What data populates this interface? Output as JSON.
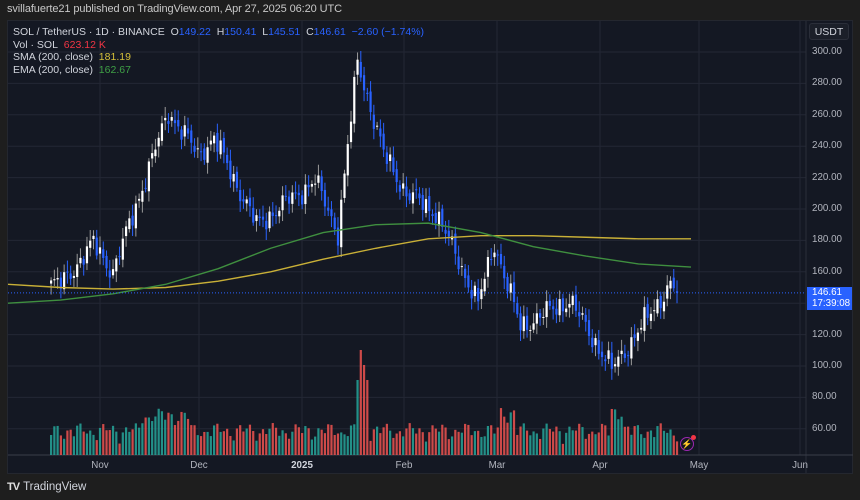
{
  "header": {
    "published_text": "svillafuerte21 published on TradingView.com, Apr 27, 2025 06:20 UTC"
  },
  "legend": {
    "symbol": "SOL / TetherUS · 1D · BINANCE",
    "open_label": "O",
    "open": "149.22",
    "high_label": "H",
    "high": "150.41",
    "low_label": "L",
    "low": "145.51",
    "close_label": "C",
    "close": "146.61",
    "change": "−2.60 (−1.74%)",
    "volume_label": "Vol · SOL",
    "volume": "623.12 K",
    "sma_label": "SMA (200, close)",
    "sma": "181.19",
    "ema_label": "EMA (200, close)",
    "ema": "162.67"
  },
  "price_axis": {
    "currency": "USDT",
    "ticks": [
      "300.00",
      "280.00",
      "260.00",
      "240.00",
      "220.00",
      "200.00",
      "180.00",
      "160.00",
      "120.00",
      "100.00",
      "80.00",
      "60.00"
    ],
    "last_price": "146.61",
    "countdown": "17:39:08"
  },
  "time_axis": {
    "labels": [
      {
        "text": "Nov",
        "bold": false
      },
      {
        "text": "Dec",
        "bold": false
      },
      {
        "text": "2025",
        "bold": true
      },
      {
        "text": "Feb",
        "bold": false
      },
      {
        "text": "Mar",
        "bold": false
      },
      {
        "text": "Apr",
        "bold": false
      },
      {
        "text": "May",
        "bold": false
      },
      {
        "text": "Jun",
        "bold": false
      }
    ]
  },
  "footer": {
    "logo_mark": "TV",
    "brand": "TradingView"
  },
  "colors": {
    "up_candle": "#ffffff",
    "down_candle": "#2962ff",
    "volume_up": "#26a69a",
    "volume_down": "#ef5350",
    "sma": "#c9b037",
    "ema": "#3f8f3f",
    "background": "#141823",
    "grid": "#232734"
  },
  "chart_data": {
    "type": "candlestick",
    "title": "SOL / TetherUS · 1D · BINANCE",
    "xlabel": "",
    "ylabel": "USDT",
    "ylim": [
      45,
      310
    ],
    "x_ticks": [
      "Nov",
      "Dec",
      "2025",
      "Feb",
      "Mar",
      "Apr",
      "May",
      "Jun"
    ],
    "y_ticks": [
      60,
      80,
      100,
      120,
      140,
      160,
      180,
      200,
      220,
      240,
      260,
      280,
      300
    ],
    "grid": true,
    "legend_position": "top-left",
    "last": {
      "open": 149.22,
      "high": 150.41,
      "low": 145.51,
      "close": 146.61,
      "change": -2.6,
      "change_pct": -1.74,
      "volume": "623.12K"
    },
    "key_points": [
      {
        "date": "2024-10-20",
        "price": 152
      },
      {
        "date": "2024-10-30",
        "price": 178
      },
      {
        "date": "2024-11-05",
        "price": 160
      },
      {
        "date": "2024-11-22",
        "price": 262
      },
      {
        "date": "2024-12-01",
        "price": 235
      },
      {
        "date": "2024-12-06",
        "price": 245
      },
      {
        "date": "2024-12-19",
        "price": 190
      },
      {
        "date": "2025-01-06",
        "price": 218
      },
      {
        "date": "2025-01-13",
        "price": 185
      },
      {
        "date": "2025-01-19",
        "price": 294
      },
      {
        "date": "2025-01-27",
        "price": 235
      },
      {
        "date": "2025-02-03",
        "price": 210
      },
      {
        "date": "2025-02-12",
        "price": 198
      },
      {
        "date": "2025-02-25",
        "price": 140
      },
      {
        "date": "2025-03-02",
        "price": 178
      },
      {
        "date": "2025-03-10",
        "price": 125
      },
      {
        "date": "2025-03-25",
        "price": 142
      },
      {
        "date": "2025-04-07",
        "price": 98
      },
      {
        "date": "2025-04-25",
        "price": 152
      },
      {
        "date": "2025-04-27",
        "price": 146.61
      }
    ],
    "series": [
      {
        "name": "SMA (200, close)",
        "last": 181.19,
        "values": [
          152,
          150,
          149,
          150,
          154,
          160,
          168,
          175,
          181,
          183,
          183,
          182,
          181,
          181
        ]
      },
      {
        "name": "EMA (200, close)",
        "last": 162.67,
        "values": [
          140,
          142,
          146,
          152,
          162,
          175,
          185,
          190,
          191,
          185,
          176,
          170,
          165,
          163
        ]
      },
      {
        "name": "Volume",
        "peak_date": "2025-01-19"
      }
    ]
  }
}
